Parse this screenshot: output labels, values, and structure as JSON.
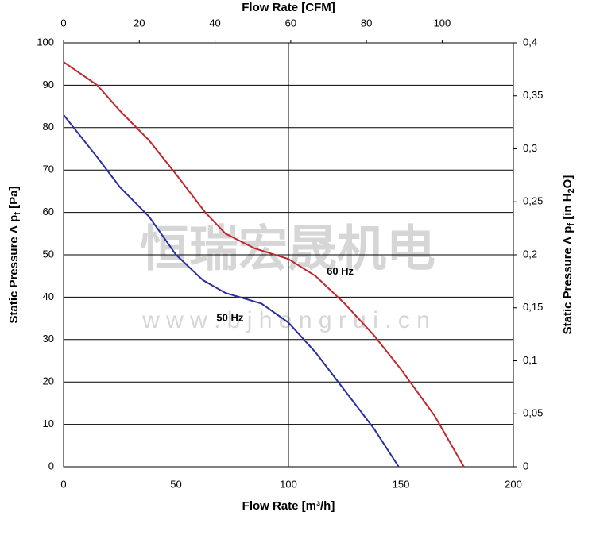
{
  "chart_data": {
    "type": "line",
    "title": "Flow Rate [CFM]",
    "x_label": "Flow Rate [m³/h]",
    "y_label": {
      "text": "Static Pressure Λ p",
      "sub": "f",
      "unit": " [Pa]"
    },
    "y2_label": {
      "text": "Static Pressure Λ p",
      "sub": "f",
      "unit": " [in H",
      "sub2": "2",
      "unit2": "O]"
    },
    "watermark": [
      "恒瑞宏晟机电",
      "w w w . b j h e n g r u i . c n"
    ],
    "xlim": [
      0,
      200
    ],
    "xticks": [
      0,
      50,
      100,
      150,
      200
    ],
    "ylim": [
      0,
      100
    ],
    "yticks": [
      0,
      10,
      20,
      30,
      40,
      50,
      60,
      70,
      80,
      90,
      100
    ],
    "x2lim": [
      0,
      118.8
    ],
    "x2ticks": [
      0,
      20,
      40,
      60,
      80,
      100
    ],
    "y2lim": [
      0,
      0.4
    ],
    "y2ticks": [
      0,
      {
        "value": 0.05,
        "label": "0,05"
      },
      {
        "value": 0.1,
        "label": "0,1"
      },
      {
        "value": 0.15,
        "label": "0,15"
      },
      {
        "value": 0.2,
        "label": "0,2"
      },
      {
        "value": 0.25,
        "label": "0,25"
      },
      {
        "value": 0.3,
        "label": "0,3"
      },
      {
        "value": 0.35,
        "label": "0,35"
      },
      {
        "value": 0.4,
        "label": "0,4"
      }
    ],
    "grid": true,
    "series": [
      {
        "name": "60 Hz",
        "color": "#c0282d",
        "label_at": [
          123,
          46
        ],
        "x": [
          0,
          15,
          25,
          38,
          50,
          63,
          72,
          85,
          100,
          112,
          125,
          138,
          150,
          165,
          178
        ],
        "values": [
          95.5,
          90,
          84,
          77,
          69,
          60,
          55,
          51.5,
          49,
          45,
          38.5,
          31,
          23,
          12,
          0
        ]
      },
      {
        "name": "50 Hz",
        "color": "#2b2f9e",
        "label_at": [
          74,
          35
        ],
        "x": [
          0,
          15,
          25,
          38,
          50,
          62,
          72,
          88,
          100,
          112,
          125,
          138,
          149
        ],
        "values": [
          83,
          73,
          66,
          59,
          50,
          44,
          41,
          38.5,
          34,
          27,
          18,
          9,
          0
        ]
      }
    ]
  }
}
